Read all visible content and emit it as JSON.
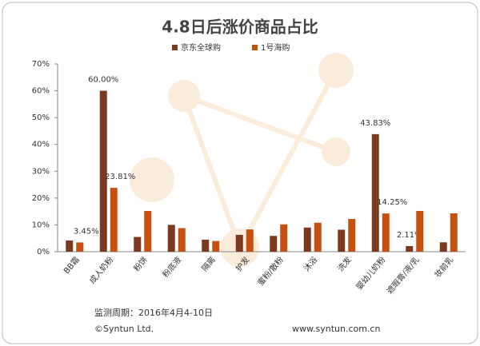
{
  "chart_data": {
    "type": "bar",
    "title": "4.8日后涨价商品占比",
    "categories": [
      "BB霜",
      "成人奶粉",
      "粉饼",
      "粉底液",
      "隔离",
      "护发",
      "蜜粉/散粉",
      "沐浴",
      "洗发",
      "婴幼儿奶粉",
      "遮瑕膏/液/乳",
      "妆前乳"
    ],
    "series": [
      {
        "name": "京东全球购",
        "color": "#7b3a1f",
        "values": [
          4.2,
          60.0,
          5.5,
          10.0,
          4.5,
          6.3,
          5.9,
          9.0,
          8.2,
          43.83,
          2.11,
          3.5
        ],
        "value_labels": [
          null,
          "60.00%",
          null,
          null,
          null,
          null,
          null,
          null,
          null,
          "43.83%",
          "2.11%",
          null
        ]
      },
      {
        "name": "1号海购",
        "color": "#c5500f",
        "values": [
          3.45,
          23.81,
          15.2,
          8.8,
          4.0,
          8.3,
          10.2,
          10.8,
          12.2,
          14.25,
          15.2,
          14.3
        ],
        "value_labels": [
          "3.45%",
          "23.81%",
          null,
          null,
          null,
          null,
          null,
          null,
          null,
          "14.25%",
          null,
          null
        ]
      }
    ],
    "ylim": [
      0,
      70
    ],
    "yticks": [
      {
        "value": 0,
        "label": "0%"
      },
      {
        "value": 10,
        "label": "10%"
      },
      {
        "value": 20,
        "label": "20%"
      },
      {
        "value": 30,
        "label": "30%"
      },
      {
        "value": 40,
        "label": "40%"
      },
      {
        "value": 50,
        "label": "50%"
      },
      {
        "value": 60,
        "label": "60%"
      },
      {
        "value": 70,
        "label": "70%"
      }
    ],
    "grid": false,
    "period": "监测周期：2016年4月4-10日",
    "copyright": "©Syntun Ltd.",
    "website": "www.syntun.com.cn"
  }
}
